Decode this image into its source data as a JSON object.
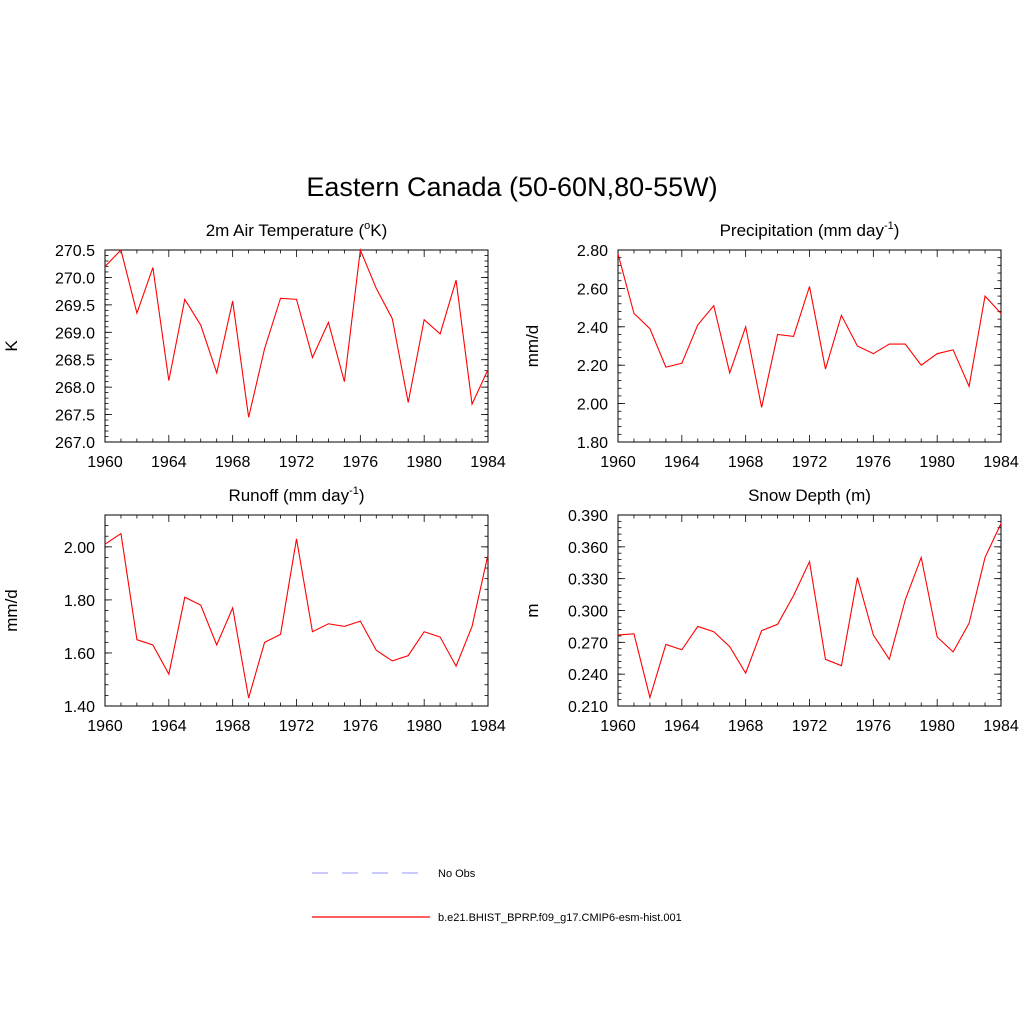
{
  "title": "Eastern Canada (50-60N,80-55W)",
  "line_color": "#ff0000",
  "obs_color": "#aaaaff",
  "legend": [
    {
      "label": "No Obs",
      "style": "dashed",
      "color": "#aaaaff"
    },
    {
      "label": "b.e21.BHIST_BPRP.f09_g17.CMIP6-esm-hist.001",
      "style": "solid",
      "color": "#ff0000"
    }
  ],
  "chart_data": [
    {
      "type": "line",
      "title": "2m Air Temperature (",
      "title_sup": "o",
      "title_end": "K)",
      "ylabel": "K",
      "xlim": [
        1960,
        1984
      ],
      "ylim": [
        267.0,
        270.5
      ],
      "xticks": [
        "1960",
        "1964",
        "1968",
        "1972",
        "1976",
        "1980",
        "1984"
      ],
      "yticks": [
        "267.0",
        "267.5",
        "268.0",
        "268.5",
        "269.0",
        "269.5",
        "270.0",
        "270.5"
      ],
      "x": [
        1960,
        1961,
        1962,
        1963,
        1964,
        1965,
        1966,
        1967,
        1968,
        1969,
        1970,
        1971,
        1972,
        1973,
        1974,
        1975,
        1976,
        1977,
        1978,
        1979,
        1980,
        1981,
        1982,
        1983,
        1984
      ],
      "series": [
        {
          "values": [
            270.2,
            270.5,
            269.35,
            270.18,
            268.12,
            269.6,
            269.13,
            268.26,
            269.57,
            267.45,
            268.7,
            269.62,
            269.6,
            268.54,
            269.18,
            268.1,
            270.5,
            269.8,
            269.25,
            267.72,
            269.23,
            268.97,
            269.95,
            267.69,
            268.32
          ]
        }
      ]
    },
    {
      "type": "line",
      "title": "Precipitation (mm day",
      "title_sup": "-1",
      "title_end": ")",
      "ylabel": "mm/d",
      "xlim": [
        1960,
        1984
      ],
      "ylim": [
        1.8,
        2.8
      ],
      "xticks": [
        "1960",
        "1964",
        "1968",
        "1972",
        "1976",
        "1980",
        "1984"
      ],
      "yticks": [
        "1.80",
        "2.00",
        "2.20",
        "2.40",
        "2.60",
        "2.80"
      ],
      "x": [
        1960,
        1961,
        1962,
        1963,
        1964,
        1965,
        1966,
        1967,
        1968,
        1969,
        1970,
        1971,
        1972,
        1973,
        1974,
        1975,
        1976,
        1977,
        1978,
        1979,
        1980,
        1981,
        1982,
        1983,
        1984
      ],
      "series": [
        {
          "values": [
            2.78,
            2.47,
            2.39,
            2.19,
            2.21,
            2.41,
            2.51,
            2.16,
            2.4,
            1.98,
            2.36,
            2.35,
            2.61,
            2.18,
            2.46,
            2.3,
            2.26,
            2.31,
            2.31,
            2.2,
            2.26,
            2.28,
            2.09,
            2.56,
            2.47
          ]
        }
      ]
    },
    {
      "type": "line",
      "title": "Runoff (mm day",
      "title_sup": "-1",
      "title_end": ")",
      "ylabel": "mm/d",
      "xlim": [
        1960,
        1984
      ],
      "ylim": [
        1.4,
        2.12
      ],
      "xticks": [
        "1960",
        "1964",
        "1968",
        "1972",
        "1976",
        "1980",
        "1984"
      ],
      "yticks": [
        "1.40",
        "1.60",
        "1.80",
        "2.00"
      ],
      "ytick_values": [
        1.4,
        1.6,
        1.8,
        2.0
      ],
      "x": [
        1960,
        1961,
        1962,
        1963,
        1964,
        1965,
        1966,
        1967,
        1968,
        1969,
        1970,
        1971,
        1972,
        1973,
        1974,
        1975,
        1976,
        1977,
        1978,
        1979,
        1980,
        1981,
        1982,
        1983,
        1984
      ],
      "series": [
        {
          "values": [
            2.01,
            2.05,
            1.65,
            1.63,
            1.52,
            1.81,
            1.78,
            1.63,
            1.77,
            1.43,
            1.64,
            1.67,
            2.03,
            1.68,
            1.71,
            1.7,
            1.72,
            1.61,
            1.57,
            1.59,
            1.68,
            1.66,
            1.55,
            1.7,
            1.97
          ]
        }
      ]
    },
    {
      "type": "line",
      "title": "Snow Depth (m)",
      "title_sup": "",
      "title_end": "",
      "ylabel": "m",
      "xlim": [
        1960,
        1984
      ],
      "ylim": [
        0.21,
        0.39
      ],
      "xticks": [
        "1960",
        "1964",
        "1968",
        "1972",
        "1976",
        "1980",
        "1984"
      ],
      "yticks": [
        "0.210",
        "0.240",
        "0.270",
        "0.300",
        "0.330",
        "0.360",
        "0.390"
      ],
      "x": [
        1960,
        1961,
        1962,
        1963,
        1964,
        1965,
        1966,
        1967,
        1968,
        1969,
        1970,
        1971,
        1972,
        1973,
        1974,
        1975,
        1976,
        1977,
        1978,
        1979,
        1980,
        1981,
        1982,
        1983,
        1984
      ],
      "series": [
        {
          "values": [
            0.277,
            0.278,
            0.218,
            0.268,
            0.263,
            0.285,
            0.28,
            0.266,
            0.241,
            0.281,
            0.287,
            0.314,
            0.346,
            0.254,
            0.248,
            0.331,
            0.277,
            0.254,
            0.31,
            0.35,
            0.275,
            0.261,
            0.288,
            0.35,
            0.382
          ]
        }
      ]
    }
  ]
}
